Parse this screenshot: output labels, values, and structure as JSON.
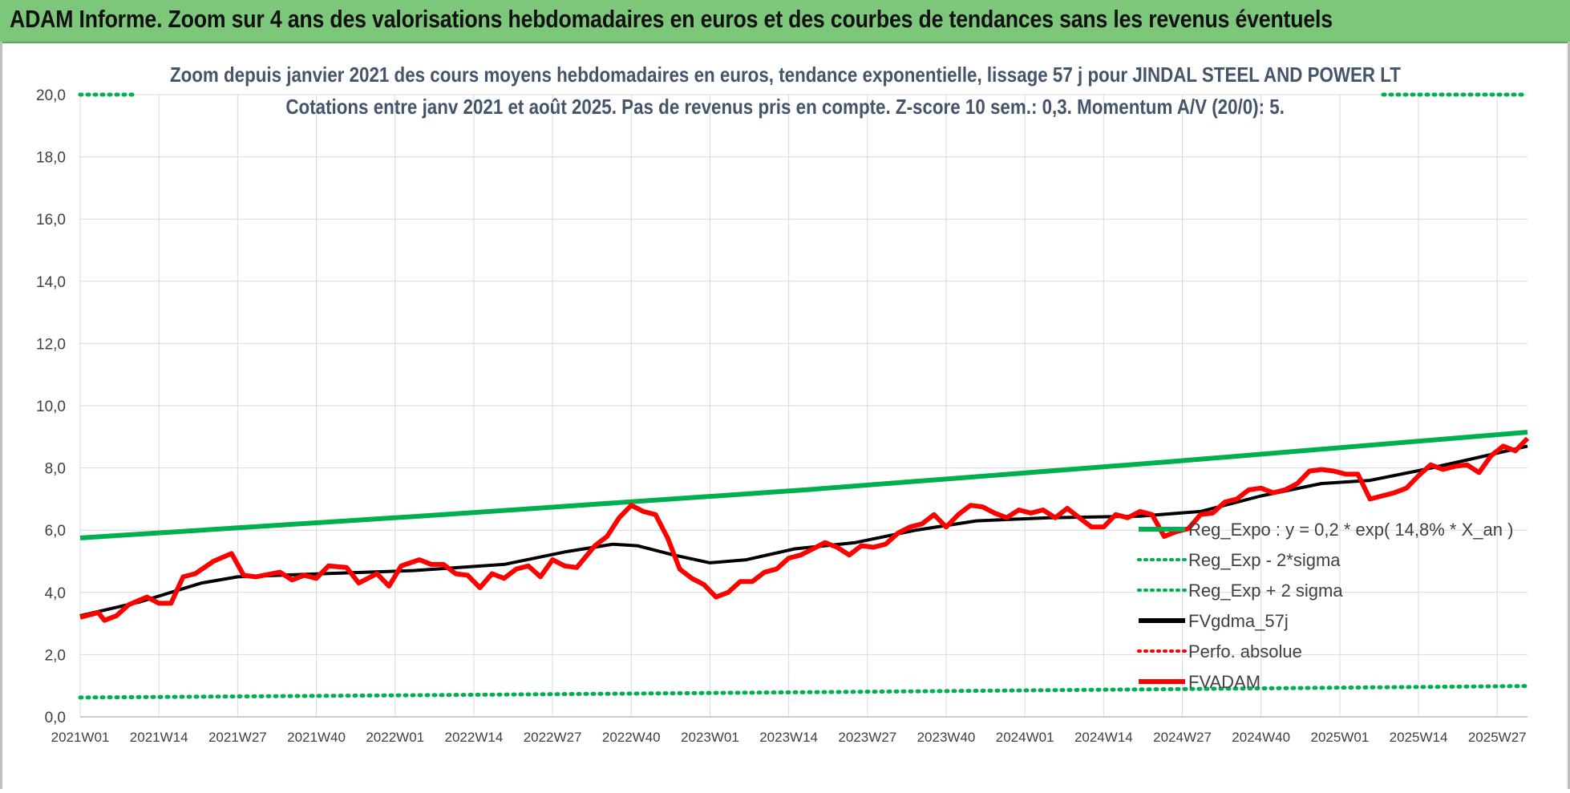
{
  "banner": {
    "title": "ADAM Informe. Zoom sur 4 ans des valorisations hebdomadaires en euros et des courbes de tendances sans les revenus éventuels"
  },
  "colors": {
    "banner_bg": "#7dc77b",
    "trend": "#00b050",
    "fvadam": "#ff0000",
    "gdma": "#000000",
    "grid": "#d9d9d9",
    "title_text": "#44546a"
  },
  "chart_data": {
    "type": "line",
    "title_line1": "Zoom depuis janvier 2021 des cours moyens hebdomadaires en euros, tendance exponentielle, lissage 57 j pour JINDAL STEEL AND POWER LT",
    "title_line2": "Cotations entre janv 2021 et août 2025.  Pas de revenus pris en compte. Z-score 10 sem.: 0,3. Momentum A/V (20/0): 5.",
    "xlabel": "",
    "ylabel": "",
    "ylim": [
      0,
      20
    ],
    "yticks": [
      "0,0",
      "2,0",
      "4,0",
      "6,0",
      "8,0",
      "10,0",
      "12,0",
      "14,0",
      "16,0",
      "18,0",
      "20,0"
    ],
    "x_ticks": [
      "2021W01",
      "2021W14",
      "2021W27",
      "2021W40",
      "2022W01",
      "2022W14",
      "2022W27",
      "2022W40",
      "2023W01",
      "2023W14",
      "2023W27",
      "2023W40",
      "2024W01",
      "2024W14",
      "2024W27",
      "2024W40",
      "2025W01",
      "2025W14",
      "2025W27"
    ],
    "x_tick_index": [
      0,
      13,
      26,
      39,
      52,
      65,
      78,
      91,
      104,
      117,
      130,
      143,
      156,
      169,
      182,
      195,
      208,
      221,
      234
    ],
    "x_max_index": 239,
    "grid": true,
    "legend_position": "bottom-right",
    "legend": [
      {
        "label": "Reg_Expo : y = 0,2 * exp( 14,8% *  X_an )",
        "style": "solid",
        "color": "#00b050"
      },
      {
        "label": "Reg_Exp - 2*sigma",
        "style": "dotted",
        "color": "#00b050"
      },
      {
        "label": "Reg_Exp + 2 sigma",
        "style": "dotted",
        "color": "#00b050"
      },
      {
        "label": "FVgdma_57j",
        "style": "solid",
        "color": "#000000"
      },
      {
        "label": "Perfo. absolue",
        "style": "dotted",
        "color": "#ff0000"
      },
      {
        "label": "FVADAM",
        "style": "solid",
        "color": "#ff0000"
      }
    ],
    "series": [
      {
        "name": "FVADAM",
        "color": "#ff0000",
        "points": [
          [
            0,
            3.2
          ],
          [
            3,
            3.35
          ],
          [
            4,
            3.1
          ],
          [
            6,
            3.25
          ],
          [
            8,
            3.6
          ],
          [
            11,
            3.85
          ],
          [
            13,
            3.65
          ],
          [
            15,
            3.65
          ],
          [
            17,
            4.5
          ],
          [
            19,
            4.6
          ],
          [
            22,
            5.0
          ],
          [
            25,
            5.25
          ],
          [
            27,
            4.55
          ],
          [
            29,
            4.5
          ],
          [
            33,
            4.65
          ],
          [
            35,
            4.4
          ],
          [
            37,
            4.55
          ],
          [
            39,
            4.45
          ],
          [
            41,
            4.85
          ],
          [
            44,
            4.8
          ],
          [
            46,
            4.3
          ],
          [
            49,
            4.6
          ],
          [
            51,
            4.2
          ],
          [
            53,
            4.85
          ],
          [
            56,
            5.05
          ],
          [
            58,
            4.9
          ],
          [
            60,
            4.9
          ],
          [
            62,
            4.6
          ],
          [
            64,
            4.55
          ],
          [
            66,
            4.15
          ],
          [
            68,
            4.6
          ],
          [
            70,
            4.45
          ],
          [
            72,
            4.75
          ],
          [
            74,
            4.85
          ],
          [
            76,
            4.5
          ],
          [
            78,
            5.05
          ],
          [
            80,
            4.85
          ],
          [
            82,
            4.8
          ],
          [
            85,
            5.5
          ],
          [
            87,
            5.8
          ],
          [
            89,
            6.4
          ],
          [
            91,
            6.8
          ],
          [
            93,
            6.6
          ],
          [
            95,
            6.5
          ],
          [
            97,
            5.75
          ],
          [
            99,
            4.75
          ],
          [
            101,
            4.45
          ],
          [
            103,
            4.25
          ],
          [
            105,
            3.85
          ],
          [
            107,
            4.0
          ],
          [
            109,
            4.35
          ],
          [
            111,
            4.35
          ],
          [
            113,
            4.65
          ],
          [
            115,
            4.75
          ],
          [
            117,
            5.1
          ],
          [
            119,
            5.2
          ],
          [
            121,
            5.4
          ],
          [
            123,
            5.6
          ],
          [
            125,
            5.45
          ],
          [
            127,
            5.2
          ],
          [
            129,
            5.5
          ],
          [
            131,
            5.45
          ],
          [
            133,
            5.55
          ],
          [
            135,
            5.9
          ],
          [
            137,
            6.1
          ],
          [
            139,
            6.2
          ],
          [
            141,
            6.5
          ],
          [
            143,
            6.1
          ],
          [
            145,
            6.5
          ],
          [
            147,
            6.8
          ],
          [
            149,
            6.75
          ],
          [
            151,
            6.55
          ],
          [
            153,
            6.4
          ],
          [
            155,
            6.65
          ],
          [
            157,
            6.55
          ],
          [
            159,
            6.65
          ],
          [
            161,
            6.4
          ],
          [
            163,
            6.7
          ],
          [
            165,
            6.4
          ],
          [
            167,
            6.1
          ],
          [
            169,
            6.1
          ],
          [
            171,
            6.5
          ],
          [
            173,
            6.4
          ],
          [
            175,
            6.6
          ],
          [
            177,
            6.5
          ],
          [
            179,
            5.8
          ],
          [
            181,
            5.95
          ],
          [
            183,
            6.05
          ],
          [
            185,
            6.5
          ],
          [
            187,
            6.55
          ],
          [
            189,
            6.9
          ],
          [
            191,
            7.0
          ],
          [
            193,
            7.3
          ],
          [
            195,
            7.35
          ],
          [
            197,
            7.2
          ],
          [
            199,
            7.3
          ],
          [
            201,
            7.5
          ],
          [
            203,
            7.9
          ],
          [
            205,
            7.95
          ],
          [
            207,
            7.9
          ],
          [
            209,
            7.8
          ],
          [
            211,
            7.8
          ],
          [
            213,
            7.0
          ],
          [
            215,
            7.1
          ],
          [
            217,
            7.2
          ],
          [
            219,
            7.35
          ],
          [
            221,
            7.75
          ],
          [
            223,
            8.1
          ],
          [
            225,
            7.95
          ],
          [
            227,
            8.05
          ],
          [
            229,
            8.1
          ],
          [
            231,
            7.85
          ],
          [
            233,
            8.4
          ],
          [
            235,
            8.7
          ],
          [
            237,
            8.55
          ],
          [
            239,
            8.95
          ]
        ]
      },
      {
        "name": "FVgdma_57j",
        "color": "#000000",
        "points": [
          [
            0,
            3.25
          ],
          [
            10,
            3.7
          ],
          [
            20,
            4.3
          ],
          [
            26,
            4.5
          ],
          [
            40,
            4.6
          ],
          [
            55,
            4.7
          ],
          [
            70,
            4.9
          ],
          [
            80,
            5.3
          ],
          [
            88,
            5.55
          ],
          [
            92,
            5.5
          ],
          [
            98,
            5.2
          ],
          [
            104,
            4.95
          ],
          [
            110,
            5.05
          ],
          [
            118,
            5.4
          ],
          [
            128,
            5.6
          ],
          [
            138,
            6.0
          ],
          [
            148,
            6.3
          ],
          [
            160,
            6.4
          ],
          [
            175,
            6.45
          ],
          [
            185,
            6.6
          ],
          [
            195,
            7.1
          ],
          [
            205,
            7.5
          ],
          [
            213,
            7.6
          ],
          [
            222,
            7.95
          ],
          [
            230,
            8.3
          ],
          [
            239,
            8.7
          ]
        ]
      },
      {
        "name": "Reg_Expo : y = 0,2 * exp( 14,8% *  X_an )",
        "color": "#00b050",
        "points": [
          [
            0,
            5.75
          ],
          [
            60,
            6.5
          ],
          [
            120,
            7.3
          ],
          [
            180,
            8.2
          ],
          [
            239,
            9.15
          ]
        ]
      },
      {
        "name": "Reg_Exp - 2*sigma",
        "color": "#00b050",
        "points": [
          [
            0,
            0.62
          ],
          [
            60,
            0.7
          ],
          [
            120,
            0.79
          ],
          [
            180,
            0.89
          ],
          [
            239,
            0.99
          ]
        ]
      },
      {
        "name": "Reg_Exp + 2 sigma",
        "color": "#00b050",
        "points": [
          [
            0,
            20.0
          ],
          [
            9,
            20.0
          ]
        ]
      }
    ]
  }
}
